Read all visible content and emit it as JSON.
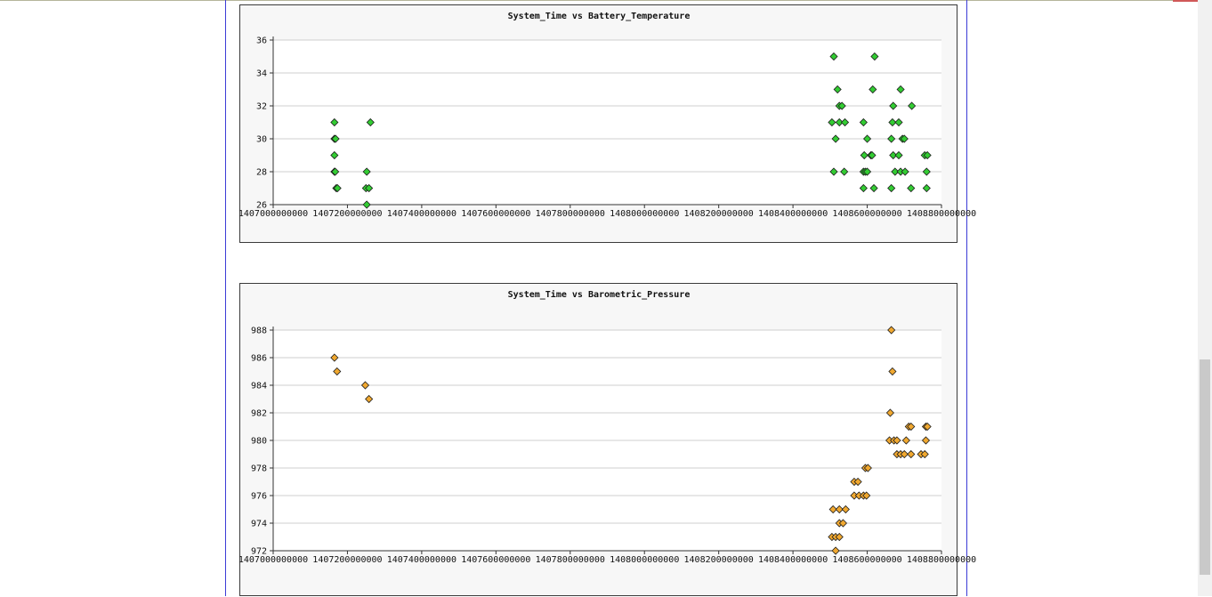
{
  "colors": {
    "grid": "#cfcfcf",
    "battery_marker": "#33cc33",
    "pressure_marker": "#f0a830",
    "marker_stroke": "#1a1a1a",
    "frame": "#3b3bd6"
  },
  "chart_data": [
    {
      "type": "scatter",
      "title": "System_Time vs Battery_Temperature",
      "xlabel": "",
      "ylabel": "",
      "xlim": [
        1407000000000,
        1408800000000
      ],
      "ylim": [
        26,
        36
      ],
      "x_ticks": [
        1407000000000,
        1407200000000,
        1407400000000,
        1407600000000,
        1407800000000,
        1408000000000,
        1408200000000,
        1408400000000,
        1408600000000,
        1408800000000
      ],
      "x_tick_labels": [
        "1407000000000",
        "1407200000000",
        "1407400000000",
        "1407600000000",
        "1407800000000",
        "1408000000000",
        "1408200000000",
        "1408400000000",
        "1408600000000",
        "1408800000000"
      ],
      "y_ticks": [
        26,
        28,
        30,
        32,
        34,
        36
      ],
      "y_tick_labels": [
        "26",
        "28",
        "30",
        "32",
        "34",
        "36"
      ],
      "grid": "horizontal",
      "marker": "diamond",
      "series": [
        {
          "color": "#33cc33",
          "points": [
            [
              1407165000000,
              31
            ],
            [
              1407165000000,
              30
            ],
            [
              1407168000000,
              30
            ],
            [
              1407165000000,
              29
            ],
            [
              1407165000000,
              28
            ],
            [
              1407167000000,
              28
            ],
            [
              1407170000000,
              27
            ],
            [
              1407173000000,
              27
            ],
            [
              1407252000000,
              28
            ],
            [
              1407250000000,
              27
            ],
            [
              1407258000000,
              27
            ],
            [
              1407262000000,
              31
            ],
            [
              1407252000000,
              26
            ],
            [
              1408510000000,
              35
            ],
            [
              1408520000000,
              33
            ],
            [
              1408525000000,
              32
            ],
            [
              1408532000000,
              32
            ],
            [
              1408505000000,
              31
            ],
            [
              1408525000000,
              31
            ],
            [
              1408540000000,
              31
            ],
            [
              1408515000000,
              30
            ],
            [
              1408510000000,
              28
            ],
            [
              1408538000000,
              28
            ],
            [
              1408620000000,
              35
            ],
            [
              1408615000000,
              33
            ],
            [
              1408590000000,
              31
            ],
            [
              1408600000000,
              30
            ],
            [
              1408592000000,
              29
            ],
            [
              1408610000000,
              29
            ],
            [
              1408613000000,
              29
            ],
            [
              1408590000000,
              28
            ],
            [
              1408595000000,
              28
            ],
            [
              1408600000000,
              28
            ],
            [
              1408590000000,
              27
            ],
            [
              1408618000000,
              27
            ],
            [
              1408690000000,
              33
            ],
            [
              1408670000000,
              32
            ],
            [
              1408720000000,
              32
            ],
            [
              1408668000000,
              31
            ],
            [
              1408685000000,
              31
            ],
            [
              1408665000000,
              30
            ],
            [
              1408695000000,
              30
            ],
            [
              1408700000000,
              30
            ],
            [
              1408670000000,
              29
            ],
            [
              1408685000000,
              29
            ],
            [
              1408675000000,
              28
            ],
            [
              1408690000000,
              28
            ],
            [
              1408702000000,
              28
            ],
            [
              1408665000000,
              27
            ],
            [
              1408718000000,
              27
            ],
            [
              1408755000000,
              29
            ],
            [
              1408762000000,
              29
            ],
            [
              1408760000000,
              28
            ],
            [
              1408760000000,
              27
            ]
          ]
        }
      ]
    },
    {
      "type": "scatter",
      "title": "System_Time vs Barometric_Pressure",
      "xlabel": "",
      "ylabel": "",
      "xlim": [
        1407000000000,
        1408800000000
      ],
      "ylim": [
        972,
        988
      ],
      "x_ticks": [
        1407000000000,
        1407200000000,
        1407400000000,
        1407600000000,
        1407800000000,
        1408000000000,
        1408200000000,
        1408400000000,
        1408600000000,
        1408800000000
      ],
      "x_tick_labels": [
        "1407000000000",
        "1407200000000",
        "1407400000000",
        "1407600000000",
        "1407800000000",
        "1408000000000",
        "1408200000000",
        "1408400000000",
        "1408600000000",
        "1408800000000"
      ],
      "y_ticks": [
        972,
        974,
        976,
        978,
        980,
        982,
        984,
        986,
        988
      ],
      "y_tick_labels": [
        "972",
        "974",
        "976",
        "978",
        "980",
        "982",
        "984",
        "986",
        "988"
      ],
      "grid": "horizontal",
      "marker": "diamond",
      "series": [
        {
          "color": "#f0a830",
          "points": [
            [
              1407165000000,
              986
            ],
            [
              1407172000000,
              985
            ],
            [
              1407248000000,
              984
            ],
            [
              1407258000000,
              983
            ],
            [
              1408505000000,
              973
            ],
            [
              1408515000000,
              973
            ],
            [
              1408525000000,
              973
            ],
            [
              1408508000000,
              975
            ],
            [
              1408525000000,
              975
            ],
            [
              1408542000000,
              975
            ],
            [
              1408525000000,
              974
            ],
            [
              1408535000000,
              974
            ],
            [
              1408515000000,
              972
            ],
            [
              1408565000000,
              977
            ],
            [
              1408575000000,
              977
            ],
            [
              1408565000000,
              976
            ],
            [
              1408578000000,
              976
            ],
            [
              1408590000000,
              976
            ],
            [
              1408598000000,
              976
            ],
            [
              1408595000000,
              978
            ],
            [
              1408602000000,
              978
            ],
            [
              1408665000000,
              988
            ],
            [
              1408668000000,
              985
            ],
            [
              1408662000000,
              982
            ],
            [
              1408660000000,
              980
            ],
            [
              1408672000000,
              980
            ],
            [
              1408680000000,
              980
            ],
            [
              1408680000000,
              979
            ],
            [
              1408690000000,
              979
            ],
            [
              1408700000000,
              979
            ],
            [
              1408705000000,
              980
            ],
            [
              1408718000000,
              979
            ],
            [
              1408712000000,
              981
            ],
            [
              1408718000000,
              981
            ],
            [
              1408745000000,
              979
            ],
            [
              1408755000000,
              979
            ],
            [
              1408758000000,
              981
            ],
            [
              1408762000000,
              981
            ],
            [
              1408758000000,
              980
            ]
          ]
        }
      ]
    }
  ]
}
